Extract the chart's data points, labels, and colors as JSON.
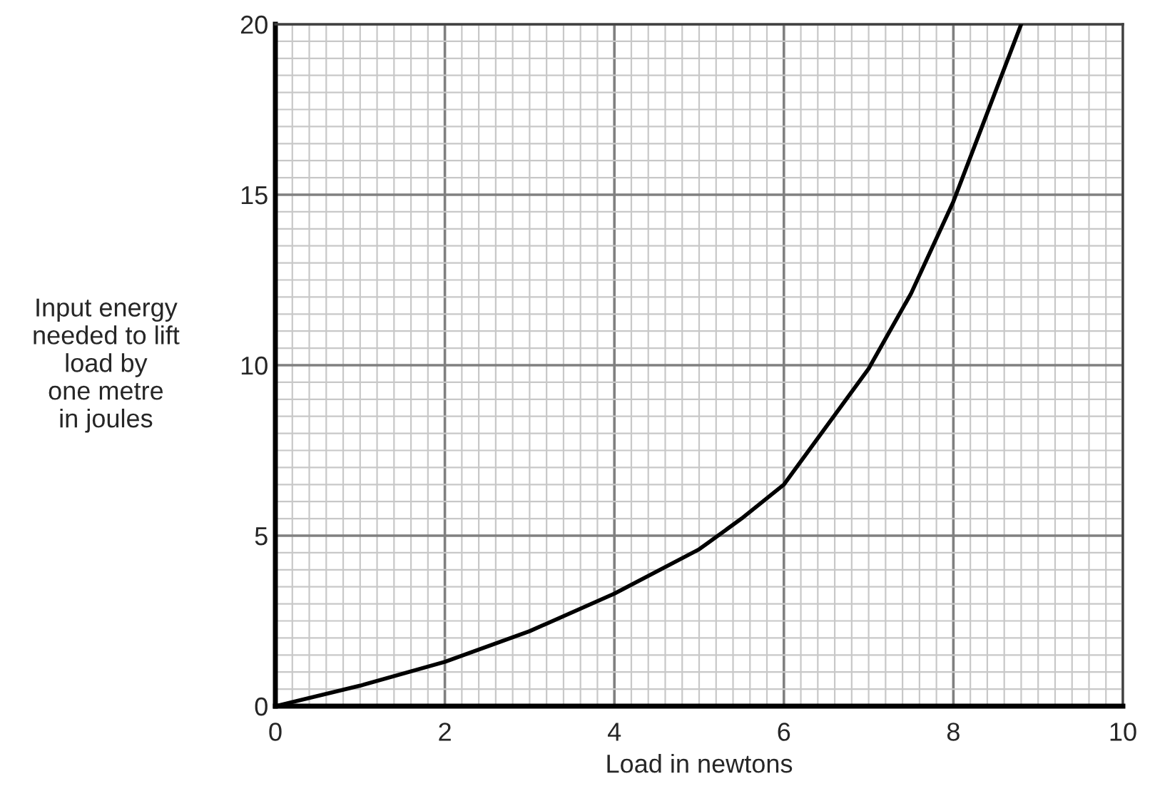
{
  "chart_data": {
    "type": "line",
    "xlabel": "Load in newtons",
    "ylabel": "Input energy\nneeded to lift\nload by\none metre\nin joules",
    "x": [
      0,
      1,
      2,
      3,
      4,
      5,
      5.5,
      6,
      6.5,
      7,
      7.5,
      8,
      8.4,
      8.8
    ],
    "series": [
      {
        "color": "#000000",
        "values": [
          0,
          0.6,
          1.3,
          2.2,
          3.3,
          4.6,
          5.5,
          6.5,
          8.2,
          9.9,
          12.1,
          14.8,
          17.4,
          20
        ]
      }
    ],
    "xlim": [
      0,
      10
    ],
    "ylim": [
      0,
      20
    ],
    "xticks": [
      0,
      2,
      4,
      6,
      8,
      10
    ],
    "yticks": [
      0,
      5,
      10,
      15,
      20
    ],
    "grid": true,
    "legend": false,
    "marker": "none",
    "line_style": "solid"
  }
}
